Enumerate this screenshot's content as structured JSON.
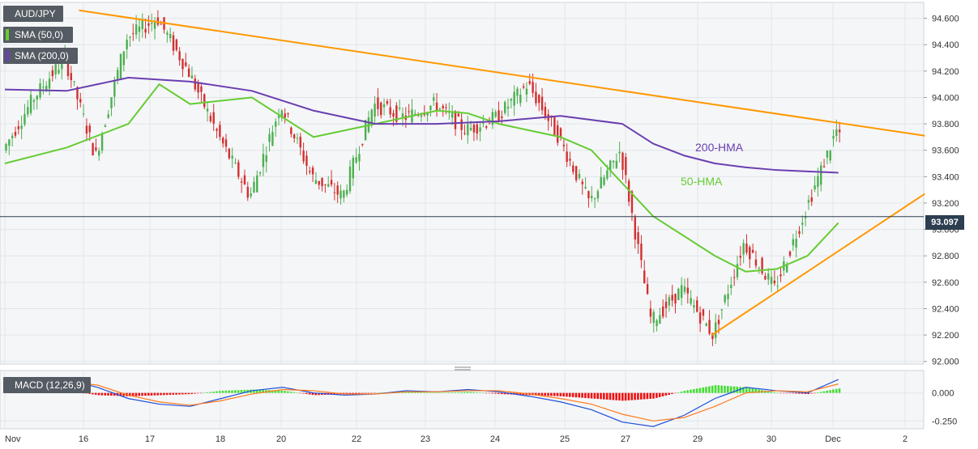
{
  "title": "AUD/JPY",
  "legend": [
    {
      "label": "SMA (50,0)",
      "color": "#66cc33"
    },
    {
      "label": "SMA (200,0)",
      "color": "#6a3fb0"
    }
  ],
  "current_price_tag": "93.097",
  "annotations": {
    "hma200": "200-HMA",
    "hma50": "50-HMA"
  },
  "colors": {
    "up": "#4caf50",
    "down": "#d32f2f",
    "sma50": "#66cc33",
    "sma200": "#6a3fb0",
    "trend": "#ff9800",
    "macd_line": "#1e4fd8",
    "signal_line": "#ff7a1a",
    "hist_up": "#44dd33",
    "hist_down": "#ee1111"
  },
  "chart_data": [
    {
      "type": "line",
      "title": "AUD/JPY",
      "description_series": [
        "price",
        "SMA (50,0)",
        "SMA (200,0)"
      ],
      "x_tick_labels": [
        "Nov",
        "16",
        "17",
        "18",
        "20",
        "22",
        "23",
        "24",
        "25",
        "27",
        "29",
        "30",
        "Dec",
        "2"
      ],
      "y_tick_labels": [
        "92.000",
        "92.200",
        "92.400",
        "92.600",
        "92.800",
        "93.000",
        "93.200",
        "93.400",
        "93.600",
        "93.800",
        "94.000",
        "94.200",
        "94.400",
        "94.600"
      ],
      "ylim": [
        91.98,
        94.72
      ],
      "current_price": 93.097,
      "grid": true,
      "series": [
        {
          "name": "price",
          "x": [
            0,
            0.5,
            1,
            1.5,
            2,
            2.5,
            3,
            3.5,
            4,
            4.5,
            5,
            5.5,
            6,
            6.5,
            7,
            7.5,
            8,
            8.5,
            9,
            9.5,
            10,
            10.5,
            11,
            11.5,
            12,
            12.5,
            13,
            13.5,
            14,
            14.5,
            15
          ],
          "values": [
            93.6,
            94.0,
            94.3,
            93.55,
            94.45,
            94.6,
            94.2,
            93.7,
            93.25,
            93.95,
            93.4,
            93.25,
            93.95,
            93.85,
            93.95,
            93.75,
            93.85,
            94.1,
            93.7,
            93.2,
            93.6,
            92.3,
            92.55,
            92.2,
            92.9,
            92.55,
            93.15,
            93.75,
            93.1,
            93.1,
            93.1
          ]
        },
        {
          "name": "SMA (50,0)",
          "x": [
            0,
            1,
            2,
            2.5,
            3,
            4,
            5,
            6,
            7,
            7.5,
            8,
            8.5,
            9,
            9.5,
            10,
            10.5,
            11,
            11.5,
            12,
            12.5,
            13,
            13.5
          ],
          "values": [
            93.5,
            93.62,
            93.8,
            94.1,
            93.95,
            94.0,
            93.7,
            93.8,
            93.9,
            93.88,
            93.8,
            93.75,
            93.7,
            93.6,
            93.35,
            93.1,
            92.95,
            92.8,
            92.68,
            92.7,
            92.8,
            93.05
          ]
        },
        {
          "name": "SMA (200,0)",
          "x": [
            0,
            1,
            1.5,
            2,
            3,
            4,
            5,
            6,
            7,
            8,
            9,
            10,
            10.5,
            11,
            11.5,
            12,
            12.5,
            13,
            13.5
          ],
          "values": [
            94.06,
            94.05,
            94.1,
            94.15,
            94.12,
            94.05,
            93.9,
            93.8,
            93.8,
            93.82,
            93.86,
            93.8,
            93.65,
            93.56,
            93.5,
            93.47,
            93.45,
            93.44,
            93.43
          ]
        }
      ],
      "trendlines": [
        {
          "from": [
            1.2,
            94.66
          ],
          "to": [
            14.9,
            93.71
          ]
        },
        {
          "from": [
            11.45,
            92.2
          ],
          "to": [
            14.9,
            93.27
          ]
        }
      ]
    },
    {
      "type": "bar",
      "title": "MACD (12,26,9)",
      "y_tick_labels": [
        "-0.250",
        "0.000"
      ],
      "ylim": [
        -0.32,
        0.2
      ],
      "grid": true,
      "x": [
        0,
        0.5,
        1,
        1.5,
        2,
        2.5,
        3,
        3.5,
        4,
        4.5,
        5,
        5.5,
        6,
        6.5,
        7,
        7.5,
        8,
        8.5,
        9,
        9.5,
        10,
        10.5,
        11,
        11.5,
        12,
        12.5,
        13,
        13.5
      ],
      "series": [
        {
          "name": "MACD",
          "values": [
            0.03,
            0.1,
            0.12,
            0.05,
            -0.05,
            -0.1,
            -0.12,
            -0.05,
            0.02,
            0.05,
            0.0,
            -0.02,
            -0.01,
            0.02,
            0.01,
            0.03,
            0.01,
            -0.03,
            -0.08,
            -0.15,
            -0.26,
            -0.3,
            -0.2,
            -0.05,
            0.05,
            0.02,
            0.0,
            0.12
          ]
        },
        {
          "name": "Signal",
          "values": [
            0.0,
            0.06,
            0.1,
            0.07,
            -0.02,
            -0.08,
            -0.11,
            -0.07,
            -0.01,
            0.03,
            0.02,
            -0.01,
            -0.01,
            0.01,
            0.01,
            0.02,
            0.02,
            -0.01,
            -0.05,
            -0.1,
            -0.19,
            -0.25,
            -0.22,
            -0.12,
            0.0,
            0.02,
            0.01,
            0.08
          ]
        },
        {
          "name": "Histogram",
          "values": [
            0.03,
            0.04,
            0.02,
            -0.02,
            -0.03,
            -0.02,
            -0.01,
            0.02,
            0.03,
            0.02,
            -0.02,
            -0.01,
            0.0,
            0.01,
            0.0,
            0.01,
            -0.01,
            -0.02,
            -0.03,
            -0.05,
            -0.07,
            -0.05,
            0.02,
            0.07,
            0.05,
            0.0,
            -0.01,
            0.04
          ]
        }
      ]
    }
  ]
}
